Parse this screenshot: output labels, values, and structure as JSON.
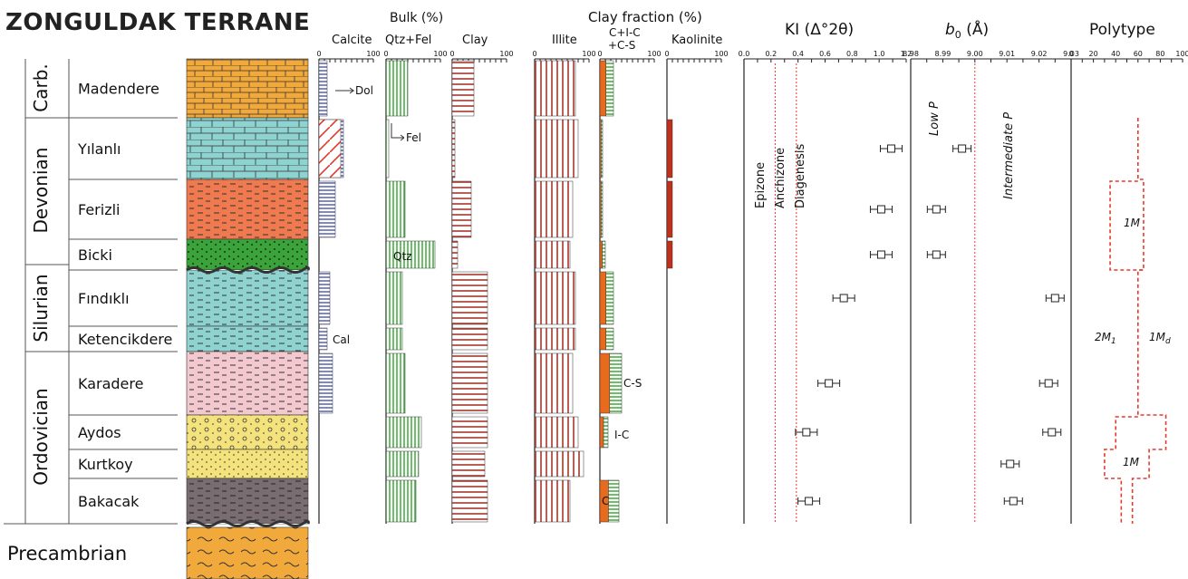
{
  "title": "ZONGULDAK TERRANE",
  "periods": [
    {
      "label": "Carb.",
      "key": "carb"
    },
    {
      "label": "Devonian",
      "key": "devonian"
    },
    {
      "label": "Silurian",
      "key": "silurian"
    },
    {
      "label": "Ordovician",
      "key": "ordovician"
    },
    {
      "label": "Precambrian",
      "key": "precambrian"
    }
  ],
  "formations": [
    {
      "name": "Madendere",
      "lith": "limestone-orange"
    },
    {
      "name": "Yılanlı",
      "lith": "limestone-cyan"
    },
    {
      "name": "Ferizli",
      "lith": "shale-red"
    },
    {
      "name": "Bicki",
      "lith": "sandstone-green"
    },
    {
      "name": "Fındıklı",
      "lith": "shale-cyan"
    },
    {
      "name": "Ketencikdere",
      "lith": "shale-cyan"
    },
    {
      "name": "Karadere",
      "lith": "shale-pink"
    },
    {
      "name": "Aydos",
      "lith": "conglomerate-yellow"
    },
    {
      "name": "Kurtkoy",
      "lith": "sandstone-yellow"
    },
    {
      "name": "Bakacak",
      "lith": "shale-gray"
    }
  ],
  "columns": {
    "calcite": {
      "title": "Calcite",
      "ticks": [
        "0",
        "100"
      ]
    },
    "bulk": {
      "title": "Bulk (%)",
      "subtitle": "Qtz+Fel",
      "ticks": [
        "0",
        "100"
      ]
    },
    "clay": {
      "title": "Clay",
      "ticks": [
        "0",
        "100"
      ]
    },
    "clay_fraction": {
      "title": "Clay fraction (%)"
    },
    "illite": {
      "title": "Illite",
      "ticks": [
        "0",
        "100"
      ]
    },
    "cic": {
      "title": "C+I-C",
      "subtitle": "+C-S",
      "ticks": [
        "0",
        "100"
      ]
    },
    "kaolinite": {
      "title": "Kaolinite",
      "ticks": [
        "0",
        "100"
      ]
    },
    "ki": {
      "title": "KI (Δ°2θ)",
      "ticks": [
        "0.0",
        "0.2",
        "0.4",
        "0.6",
        "0.8",
        "1.0",
        "1.2"
      ],
      "zones": [
        "Epizone",
        "Anchizone",
        "Diagenesis"
      ]
    },
    "b0": {
      "title_b": "b",
      "title_sub": "0",
      "title_rest": " (Å)",
      "ticks": [
        "8.98",
        "8.99",
        "9.00",
        "9.01",
        "9.02",
        "9.03"
      ],
      "zones": [
        "Low P",
        "Intermediate P"
      ]
    },
    "polytype": {
      "title": "Polytype",
      "ticks": [
        "0",
        "20",
        "40",
        "60",
        "80",
        "100"
      ],
      "labels": [
        "1M",
        "2M",
        "1",
        "1M",
        "d",
        "1M"
      ]
    }
  },
  "annotations": {
    "dol": "Dol",
    "fel": "Fel",
    "qtz": "Qtz",
    "cal": "Cal",
    "cs": "C-S",
    "ic": "I-C",
    "c": "C"
  },
  "colors": {
    "calcite_bar": "#2a3a9a",
    "dolomite_bar": "#e03a2a",
    "quartz_bar": "#3fa83a",
    "clay_bar": "#a02b1e",
    "illite_bar": "#a02b1e",
    "chlorite_fill": "#e86a1c",
    "kaolinite_fill": "#c0301c",
    "redline": "#e33b2e",
    "lith_orange": "#f2a93b",
    "lith_cyan": "#8fd3d1",
    "lith_red": "#ef7a4f",
    "lith_green": "#3aa33a",
    "lith_pink": "#f3c9cf",
    "lith_yellow": "#f4e27c",
    "lith_gray": "#7a6d72"
  },
  "chart_data": {
    "type": "table",
    "formations": [
      "Madendere",
      "Yılanlı",
      "Ferizli",
      "Bicki",
      "Fındıklı",
      "Ketencikdere",
      "Karadere",
      "Aydos",
      "Kurtkoy",
      "Bakacak"
    ],
    "calcite_pct": [
      15,
      45,
      30,
      0,
      20,
      15,
      25,
      0,
      0,
      0
    ],
    "dolomite_pct": [
      0,
      40,
      0,
      0,
      0,
      0,
      0,
      0,
      0,
      0
    ],
    "bulk_qtz_fel_pct": [
      40,
      5,
      35,
      90,
      30,
      30,
      35,
      65,
      60,
      55
    ],
    "clay_pct": [
      40,
      5,
      35,
      10,
      65,
      65,
      65,
      65,
      60,
      65
    ],
    "illite_pct": [
      75,
      80,
      70,
      65,
      75,
      75,
      70,
      80,
      90,
      65
    ],
    "cic_cs_pct": [
      25,
      5,
      5,
      10,
      25,
      25,
      40,
      15,
      0,
      35
    ],
    "kaolinite_pct": [
      0,
      10,
      10,
      10,
      0,
      0,
      0,
      0,
      0,
      0
    ],
    "ki": [
      null,
      1.18,
      1.1,
      1.1,
      0.8,
      null,
      0.68,
      0.5,
      null,
      0.52
    ],
    "b0": [
      null,
      8.996,
      8.988,
      8.988,
      9.025,
      null,
      9.023,
      9.024,
      9.011,
      9.012
    ],
    "polytype_1M_pct": [
      null,
      60,
      65,
      65,
      60,
      60,
      60,
      85,
      70,
      55
    ],
    "ki_zone_boundaries": [
      0.25,
      0.42
    ],
    "b0_zone_boundary": 9.0
  }
}
